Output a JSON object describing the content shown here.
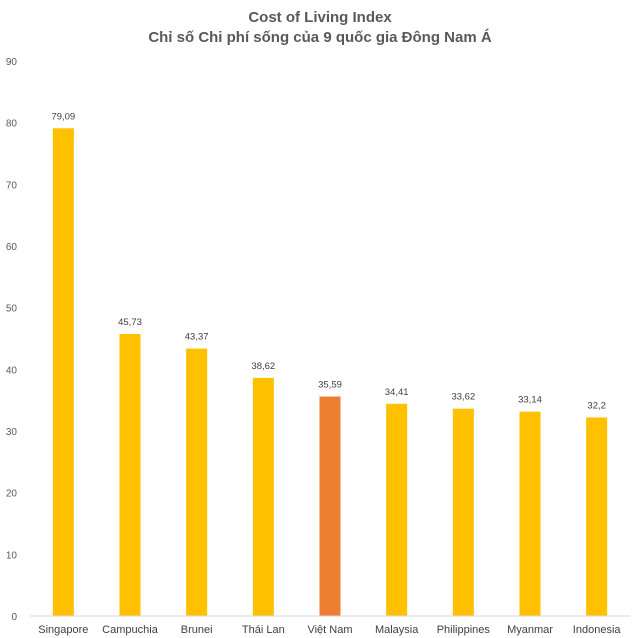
{
  "chart_data": {
    "type": "bar",
    "title": "Cost of Living Index",
    "subtitle": "Chỉ số Chi phí sống của 9 quốc gia Đông Nam Á",
    "categories": [
      "Singapore",
      "Campuchia",
      "Brunei",
      "Thái Lan",
      "Việt Nam",
      "Malaysia",
      "Philippines",
      "Myanmar",
      "Indonesia"
    ],
    "values": [
      79.09,
      45.73,
      43.37,
      38.62,
      35.59,
      34.41,
      33.62,
      33.14,
      32.2
    ],
    "data_labels": [
      "79,09",
      "45,73",
      "43,37",
      "38,62",
      "35,59",
      "34,41",
      "33,62",
      "33,14",
      "32,2"
    ],
    "yticks": [
      "0",
      "10",
      "20",
      "30",
      "40",
      "50",
      "60",
      "70",
      "80",
      "90"
    ],
    "ylim": [
      0,
      90
    ],
    "xlabel": "",
    "ylabel": "",
    "grid": false,
    "legend": "none",
    "colors": {
      "default": "#FFC000",
      "highlight": "#ED7D31"
    },
    "highlight_category": "Việt Nam"
  }
}
